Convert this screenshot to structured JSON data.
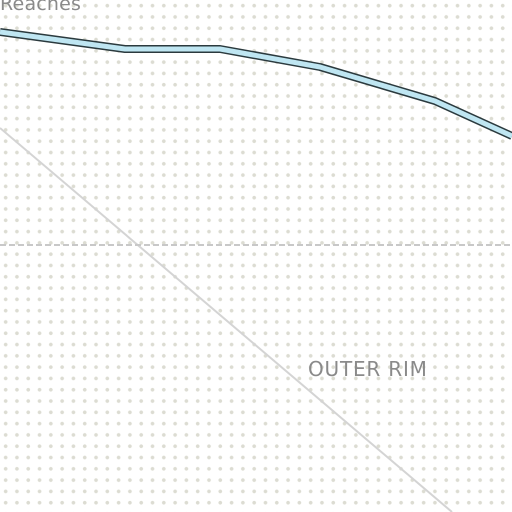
{
  "map": {
    "labels": {
      "top_partial": "Reaches",
      "region": "OUTER RIM"
    },
    "colors": {
      "background": "#ffffff",
      "dot_pattern": "#dcdcd2",
      "route_fill": "#bfe6f2",
      "route_outline": "#2b3a3e",
      "boundary_line": "#d4d4d4",
      "dashed_line": "#c8c8c8",
      "label_text": "#8a8a8a"
    }
  }
}
